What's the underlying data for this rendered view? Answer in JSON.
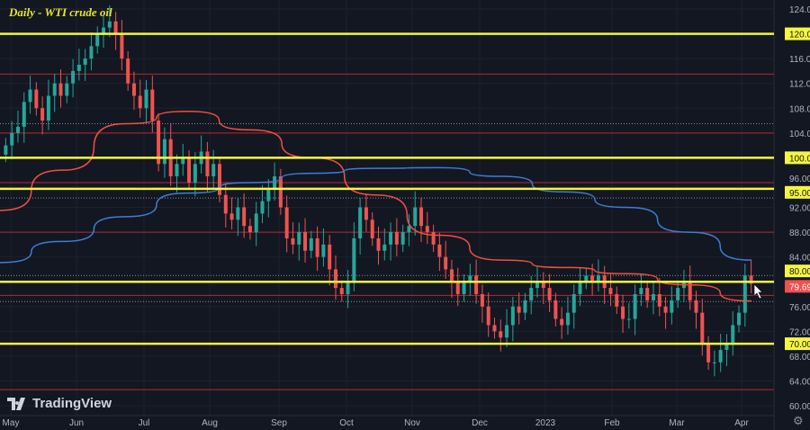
{
  "title": "Daily - WTI crude oil",
  "brand": "TradingView",
  "colors": {
    "background": "#131722",
    "up": "#26a69a",
    "down": "#ef5350",
    "support_resistance": "#f5f542",
    "minor_level": "#b22833",
    "ma_red": "#f05040",
    "ma_blue": "#3a7fd8",
    "last_price": "#f05050"
  },
  "chart_data": {
    "type": "candlestick",
    "title": "Daily - WTI crude oil",
    "ylim": [
      58.5,
      125.5
    ],
    "y_ticks": [
      "124.00",
      "116.00",
      "112.00",
      "108.00",
      "104.00",
      "96.00",
      "92.00",
      "88.00",
      "84.00",
      "76.00",
      "72.00",
      "68.00",
      "64.00",
      "60.00"
    ],
    "x_ticks": [
      "May",
      "Jun",
      "Jul",
      "Aug",
      "Sep",
      "Oct",
      "Nov",
      "Dec",
      "2023",
      "Feb",
      "Mar",
      "Apr"
    ],
    "close": [
      102,
      104,
      105,
      109,
      111,
      108,
      106,
      110,
      112,
      110,
      112,
      114,
      115,
      116,
      118,
      120,
      121,
      122,
      120,
      116,
      112,
      110,
      108,
      111,
      106,
      99,
      103,
      97,
      99,
      100,
      96,
      99,
      101,
      97,
      99,
      94,
      91,
      90,
      92,
      89,
      88,
      91,
      93,
      95,
      97,
      92,
      87,
      86,
      88,
      85,
      87,
      84,
      86,
      82,
      79,
      78,
      80,
      87,
      92,
      90,
      87,
      85,
      86,
      88,
      86,
      88,
      89,
      92,
      89,
      88,
      86,
      84,
      82,
      80,
      78,
      80,
      81,
      78,
      76,
      73,
      72,
      71,
      73,
      76,
      75,
      77,
      79,
      80,
      79,
      77,
      74,
      73,
      75,
      78,
      80,
      81,
      80,
      81,
      79,
      78,
      76,
      74,
      74,
      78,
      79,
      77,
      78,
      76,
      75,
      77,
      79,
      80,
      77,
      75,
      70,
      67,
      67,
      69,
      70,
      73,
      75,
      81,
      79.69
    ],
    "moving_averages": [
      {
        "color": "#f05040",
        "values": [
          91.5,
          98,
          105.5,
          107.5,
          104.5,
          100,
          94,
          87.5,
          83.5,
          82.3,
          81.3,
          79.5,
          76.9
        ]
      },
      {
        "color": "#3a7fd8",
        "values": [
          83.1,
          86.5,
          90.5,
          94.3,
          96,
          97.5,
          98.3,
          98.4,
          97,
          94.5,
          92,
          88,
          83.5
        ]
      }
    ],
    "levels_major": [
      {
        "price": 120,
        "label": "120.00"
      },
      {
        "price": 100,
        "label": "100.00"
      },
      {
        "price": 95,
        "label": "95.00"
      },
      {
        "price": 80,
        "label": "80.00"
      },
      {
        "price": 70,
        "label": "70.00"
      }
    ],
    "levels_minor": [
      113.5,
      104,
      96,
      88,
      77.8,
      62.6
    ],
    "levels_dotted": [
      105.5,
      93.5,
      81,
      76.8
    ],
    "last_price": {
      "price": 79.69,
      "label": "79.69"
    }
  }
}
